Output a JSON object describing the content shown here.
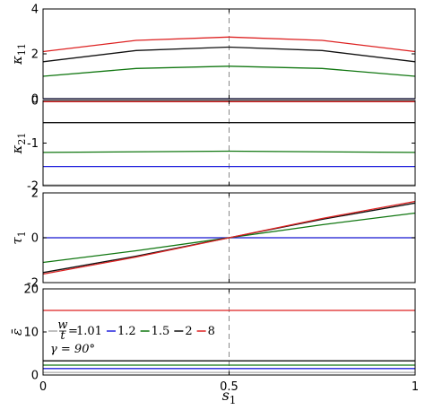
{
  "chart_data": [
    {
      "type": "line",
      "ylabel": "κ11",
      "ylabel_parts": [
        "κ",
        "11"
      ],
      "xlim": [
        0,
        1
      ],
      "ylim": [
        0,
        4
      ],
      "yticks": [
        0,
        2,
        4
      ],
      "x_ticks": [
        0,
        0.5,
        1
      ],
      "grid": "x=0.5 dashed",
      "series": [
        {
          "w_over_t": "1.01",
          "color": "#aaaaaa",
          "x": [
            0,
            0.5,
            1
          ],
          "y": [
            0,
            0,
            0
          ]
        },
        {
          "w_over_t": "1.2",
          "color": "#2222dd",
          "x": [
            0,
            0.5,
            1
          ],
          "y": [
            0,
            0,
            0
          ]
        },
        {
          "w_over_t": "1.5",
          "color": "#117711",
          "x": [
            0,
            0.25,
            0.5,
            0.75,
            1
          ],
          "y": [
            1.0,
            1.35,
            1.45,
            1.35,
            1.0
          ]
        },
        {
          "w_over_t": "2",
          "color": "#111111",
          "x": [
            0,
            0.25,
            0.5,
            0.75,
            1
          ],
          "y": [
            1.65,
            2.15,
            2.3,
            2.15,
            1.65
          ]
        },
        {
          "w_over_t": "8",
          "color": "#dd2222",
          "x": [
            0,
            0.25,
            0.5,
            0.75,
            1
          ],
          "y": [
            2.1,
            2.6,
            2.75,
            2.6,
            2.1
          ]
        }
      ]
    },
    {
      "type": "line",
      "ylabel": "κ21",
      "ylabel_parts": [
        "κ",
        "21"
      ],
      "xlim": [
        0,
        1
      ],
      "ylim": [
        -2,
        0
      ],
      "yticks": [
        -2,
        -1,
        0
      ],
      "x_ticks": [
        0,
        0.5,
        1
      ],
      "grid": "x=0.5 dashed",
      "series": [
        {
          "w_over_t": "1.01",
          "color": "#aaaaaa",
          "x": [
            0,
            1
          ],
          "y": [
            -1.98,
            -1.98
          ]
        },
        {
          "w_over_t": "1.2",
          "color": "#2222dd",
          "x": [
            0,
            1
          ],
          "y": [
            -1.55,
            -1.55
          ]
        },
        {
          "w_over_t": "1.5",
          "color": "#117711",
          "x": [
            0,
            0.5,
            1
          ],
          "y": [
            -1.22,
            -1.19,
            -1.22
          ]
        },
        {
          "w_over_t": "2",
          "color": "#111111",
          "x": [
            0,
            1
          ],
          "y": [
            -0.52,
            -0.52
          ]
        },
        {
          "w_over_t": "8",
          "color": "#dd2222",
          "x": [
            0,
            1
          ],
          "y": [
            -0.03,
            -0.03
          ]
        }
      ]
    },
    {
      "type": "line",
      "ylabel": "τ1",
      "ylabel_parts": [
        "τ",
        "1"
      ],
      "xlim": [
        0,
        1
      ],
      "ylim": [
        -2,
        2
      ],
      "yticks": [
        -2,
        0,
        2
      ],
      "x_ticks": [
        0,
        0.5,
        1
      ],
      "grid": "x=0.5 dashed",
      "series": [
        {
          "w_over_t": "1.01",
          "color": "#aaaaaa",
          "x": [
            0,
            1
          ],
          "y": [
            0,
            0
          ]
        },
        {
          "w_over_t": "1.2",
          "color": "#2222dd",
          "x": [
            0,
            1
          ],
          "y": [
            0,
            0
          ]
        },
        {
          "w_over_t": "1.5",
          "color": "#117711",
          "x": [
            0,
            0.25,
            0.5,
            0.75,
            1
          ],
          "y": [
            -1.1,
            -0.58,
            0,
            0.58,
            1.1
          ]
        },
        {
          "w_over_t": "2",
          "color": "#111111",
          "x": [
            0,
            0.25,
            0.5,
            0.75,
            1
          ],
          "y": [
            -1.55,
            -0.82,
            0,
            0.82,
            1.55
          ]
        },
        {
          "w_over_t": "8",
          "color": "#dd2222",
          "x": [
            0,
            0.25,
            0.5,
            0.75,
            1
          ],
          "y": [
            -1.62,
            -0.86,
            0,
            0.86,
            1.62
          ]
        }
      ]
    },
    {
      "type": "line",
      "ylabel": "ε̄",
      "xlabel": "s1",
      "xlabel_parts": [
        "s",
        "1"
      ],
      "xlim": [
        0,
        1
      ],
      "ylim": [
        0,
        20
      ],
      "yticks": [
        0,
        10,
        20
      ],
      "x_ticks": [
        0,
        0.5,
        1
      ],
      "grid": "x=0.5 dashed",
      "legend": {
        "entries": [
          {
            "label": "1.01",
            "color": "#aaaaaa"
          },
          {
            "label": "1.2",
            "color": "#2222dd"
          },
          {
            "label": "1.5",
            "color": "#117711"
          },
          {
            "label": "2",
            "color": "#111111"
          },
          {
            "label": "8",
            "color": "#dd2222"
          }
        ],
        "frac_num": "w",
        "frac_den": "t",
        "gamma_text": "γ = 90°",
        "placement": "lower-left"
      },
      "series": [
        {
          "w_over_t": "1.01",
          "color": "#aaaaaa",
          "x": [
            0,
            1
          ],
          "y": [
            0.6,
            0.6
          ]
        },
        {
          "w_over_t": "1.2",
          "color": "#2222dd",
          "x": [
            0,
            1
          ],
          "y": [
            1.5,
            1.5
          ]
        },
        {
          "w_over_t": "1.5",
          "color": "#117711",
          "x": [
            0,
            1
          ],
          "y": [
            2.3,
            2.3
          ]
        },
        {
          "w_over_t": "2",
          "color": "#111111",
          "x": [
            0,
            1
          ],
          "y": [
            3.3,
            3.3
          ]
        },
        {
          "w_over_t": "8",
          "color": "#dd2222",
          "x": [
            0,
            1
          ],
          "y": [
            15.0,
            15.0
          ]
        }
      ]
    }
  ]
}
